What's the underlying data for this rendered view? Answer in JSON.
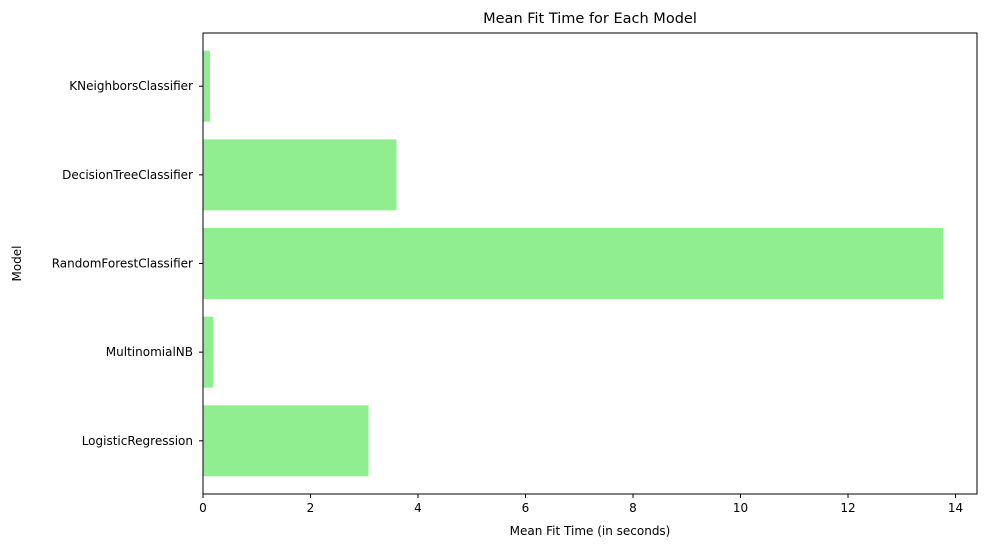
{
  "chart_data": {
    "type": "bar",
    "orientation": "horizontal",
    "title": "Mean Fit Time for Each Model",
    "xlabel": "Mean Fit Time (in seconds)",
    "ylabel": "Model",
    "categories": [
      "LogisticRegression",
      "MultinomialNB",
      "RandomForestClassifier",
      "DecisionTreeClassifier",
      "KNeighborsClassifier"
    ],
    "values": [
      3.08,
      0.19,
      13.77,
      3.6,
      0.13
    ],
    "xlim": [
      0,
      14.4
    ],
    "xticks": [
      "0",
      "2",
      "4",
      "6",
      "8",
      "10",
      "12",
      "14"
    ],
    "grid": false,
    "bar_color": "#90ee90"
  }
}
